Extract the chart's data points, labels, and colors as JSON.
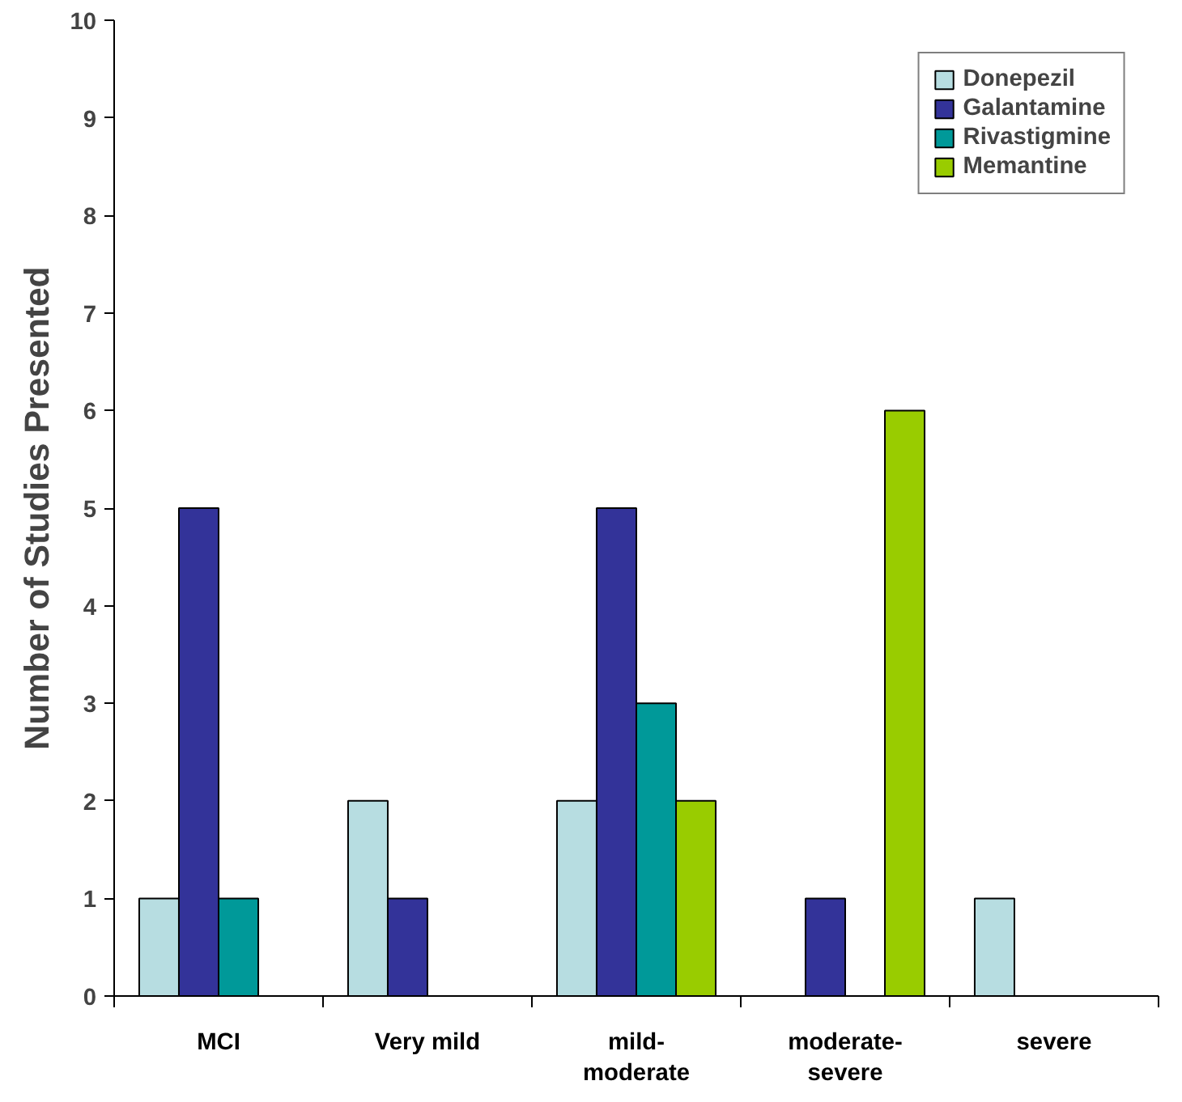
{
  "chart_data": {
    "type": "bar",
    "ylabel": "Number of Studies Presented",
    "categories": [
      "MCI",
      "Very mild",
      "mild-\nmoderate",
      "moderate-\nsevere",
      "severe"
    ],
    "series": [
      {
        "name": "Donepezil",
        "color": "#b7dde1",
        "values": [
          1,
          2,
          2,
          null,
          1
        ]
      },
      {
        "name": "Galantamine",
        "color": "#333399",
        "values": [
          5,
          1,
          5,
          1,
          null
        ]
      },
      {
        "name": "Rivastigmine",
        "color": "#009999",
        "values": [
          1,
          null,
          3,
          null,
          null
        ]
      },
      {
        "name": "Memantine",
        "color": "#99cc00",
        "values": [
          null,
          null,
          2,
          6,
          null
        ]
      }
    ],
    "ylim": [
      0,
      10
    ],
    "yticks": [
      0,
      1,
      2,
      3,
      4,
      5,
      6,
      7,
      8,
      9,
      10
    ],
    "grid": false,
    "legend": "top right"
  }
}
